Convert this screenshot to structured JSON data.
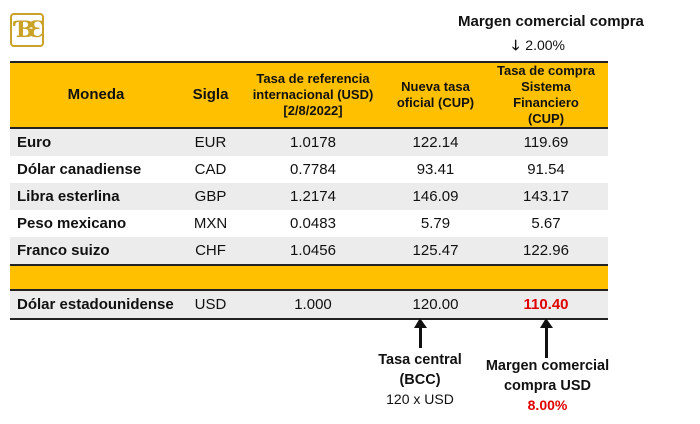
{
  "logo_text": "BE",
  "top_note": {
    "label": "Margen comercial compra",
    "value": "2.00%"
  },
  "headers": [
    "Moneda",
    "Sigla",
    "Tasa de referencia internacional (USD) [2/8/2022]",
    "Nueva tasa oficial (CUP)",
    "Tasa de compra Sistema Financiero (CUP)"
  ],
  "rows": [
    {
      "moneda": "Euro",
      "sigla": "EUR",
      "ref": "1.0178",
      "oficial": "122.14",
      "compra": "119.69"
    },
    {
      "moneda": "Dólar canadiense",
      "sigla": "CAD",
      "ref": "0.7784",
      "oficial": "93.41",
      "compra": "91.54"
    },
    {
      "moneda": "Libra esterlina",
      "sigla": "GBP",
      "ref": "1.2174",
      "oficial": "146.09",
      "compra": "143.17"
    },
    {
      "moneda": "Peso mexicano",
      "sigla": "MXN",
      "ref": "0.0483",
      "oficial": "5.79",
      "compra": "5.67"
    },
    {
      "moneda": "Franco suizo",
      "sigla": "CHF",
      "ref": "1.0456",
      "oficial": "125.47",
      "compra": "122.96"
    }
  ],
  "usd": {
    "moneda": "Dólar estadounidense",
    "sigla": "USD",
    "ref": "1.000",
    "oficial": "120.00",
    "compra": "110.40"
  },
  "note_central": {
    "l1": "Tasa central",
    "l2": "(BCC)",
    "l3": "120 x USD"
  },
  "note_margin": {
    "l1": "Margen comercial",
    "l2": "compra USD",
    "l3": "8.00%"
  },
  "colors": {
    "header": "#ffc000",
    "red": "#e00000"
  }
}
